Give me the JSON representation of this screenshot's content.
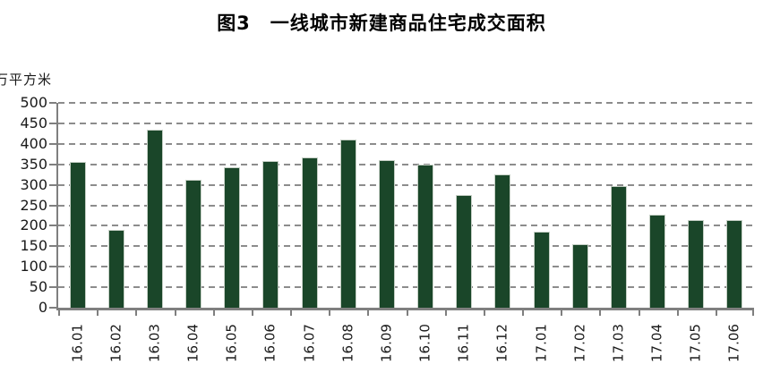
{
  "figure": {
    "title": "图3　一线城市新建商品住宅成交面积",
    "unit_label": "万平方米"
  },
  "chart_data": {
    "type": "bar",
    "title": "图3　一线城市新建商品住宅成交面积",
    "ylabel": "万平方米",
    "xlabel": "",
    "categories": [
      "16.01",
      "16.02",
      "16.03",
      "16.04",
      "16.05",
      "16.06",
      "16.07",
      "16.08",
      "16.09",
      "16.10",
      "16.11",
      "16.12",
      "17.01",
      "17.02",
      "17.03",
      "17.04",
      "17.05",
      "17.06"
    ],
    "values": [
      355,
      190,
      435,
      313,
      343,
      357,
      366,
      410,
      360,
      350,
      275,
      325,
      185,
      155,
      296,
      228,
      215,
      215
    ],
    "ylim": [
      0,
      500
    ],
    "ytick_step": 50,
    "yticks": [
      0,
      50,
      100,
      150,
      200,
      250,
      300,
      350,
      400,
      450,
      500
    ],
    "grid": "horizontal-dashed",
    "legend": "none",
    "colors": {
      "bar_fill": "#1a4629",
      "bar_border": "#c6d0c6",
      "gridline": "#8c8c8c",
      "axis": "#7f7f7f",
      "tick_text": "#1a1a1a",
      "title_text": "#000000"
    }
  }
}
